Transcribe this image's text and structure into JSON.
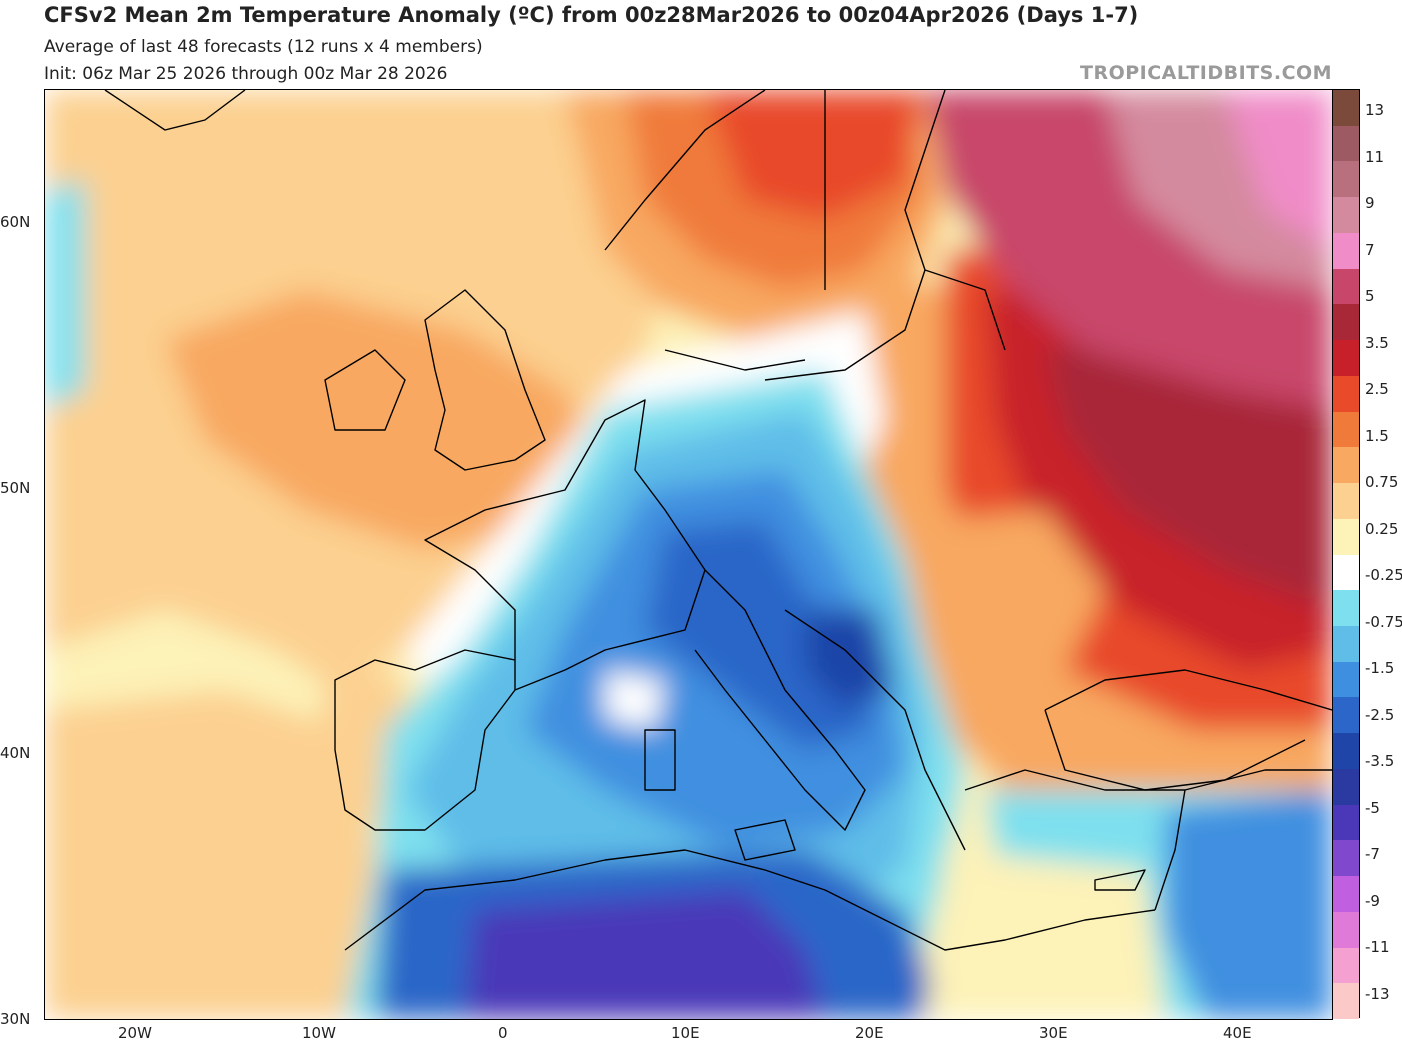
{
  "header": {
    "title": "CFSv2 Mean 2m Temperature Anomaly (ºC) from 00z28Mar2026 to 00z04Apr2026 (Days 1-7)",
    "subtitle": "Average of last 48 forecasts (12 runs x 4 members)",
    "init": "Init: 06z Mar 25 2026 through 00z Mar 28 2026",
    "brand": "TROPICALTIDBITS.COM"
  },
  "axes": {
    "lat_labels": [
      "60N",
      "50N",
      "40N",
      "30N"
    ],
    "lon_labels": [
      "20W",
      "10W",
      "0",
      "10E",
      "20E",
      "30E",
      "40E"
    ]
  },
  "colorbar": {
    "labels": [
      "13",
      "11",
      "9",
      "7",
      "5",
      "3.5",
      "2.5",
      "1.5",
      "0.75",
      "0.25",
      "-0.25",
      "-0.75",
      "-1.5",
      "-2.5",
      "-3.5",
      "-5",
      "-7",
      "-9",
      "-11",
      "-13"
    ],
    "colors": [
      "#7b4a3a",
      "#9e5a62",
      "#b8707f",
      "#d48a9e",
      "#f08cc8",
      "#c8466a",
      "#a82838",
      "#c8202a",
      "#e84a2a",
      "#f07a3a",
      "#f8a860",
      "#fcd090",
      "#fdf2b8",
      "#ffffff",
      "#7ee0ee",
      "#5fbde8",
      "#3f8fe0",
      "#2c66c8",
      "#1f45a8",
      "#2a3aa0",
      "#4a38b8",
      "#8048cc",
      "#c060e0",
      "#e07ad8",
      "#f4a0d0",
      "#fbcac8"
    ]
  },
  "map": {
    "palette": {
      "ocean_warm": "#fcd090",
      "warm_1": "#f8a860",
      "warm_2": "#f07a3a",
      "warm_3": "#e84a2a",
      "hot_1": "#c8202a",
      "hot_2": "#a82838",
      "very_hot": "#c8466a",
      "pink": "#f08cc8",
      "neutral": "#ffffff",
      "cool_1": "#7ee0ee",
      "cool_2": "#5fbde8",
      "cold_1": "#3f8fe0",
      "cold_2": "#2c66c8",
      "cold_3": "#1f45a8",
      "purple": "#4a38b8",
      "coast": "#000000"
    }
  }
}
